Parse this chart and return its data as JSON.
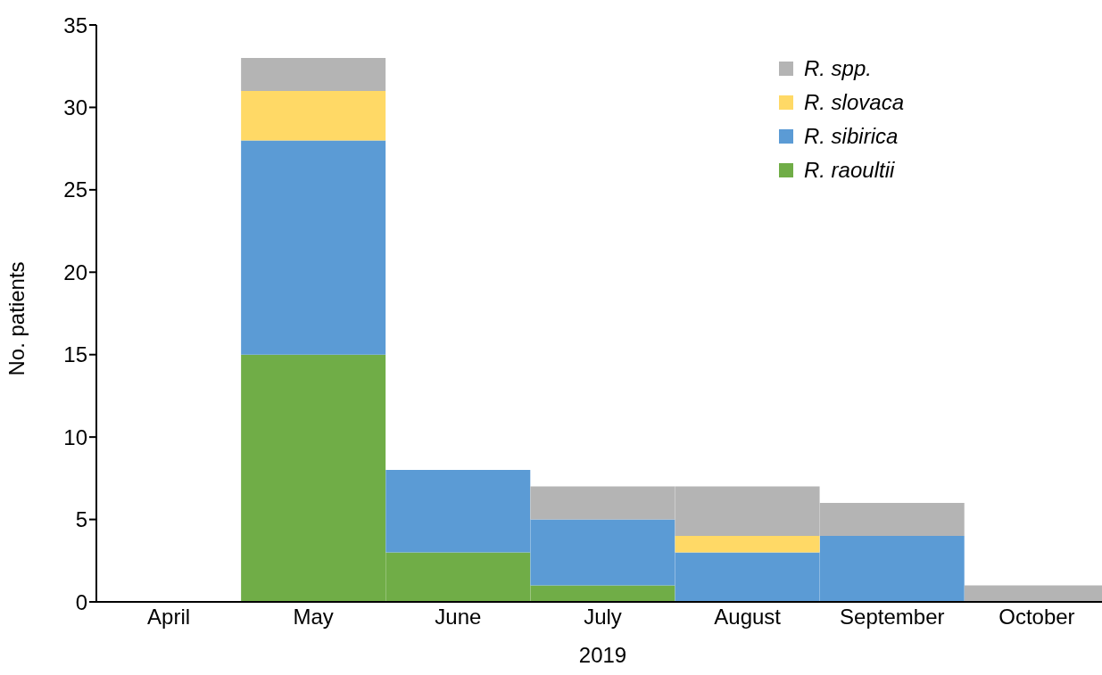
{
  "chart_data": {
    "type": "bar",
    "stacked": true,
    "xlabel": "2019",
    "ylabel": "No. patients",
    "categories": [
      "April",
      "May",
      "June",
      "July",
      "August",
      "September",
      "October"
    ],
    "series": [
      {
        "name": "R. raoultii",
        "color": "#70ad47",
        "values": [
          0,
          15,
          3,
          1,
          0,
          0,
          0
        ]
      },
      {
        "name": "R. sibirica",
        "color": "#5b9bd5",
        "values": [
          0,
          13,
          5,
          4,
          3,
          4,
          0
        ]
      },
      {
        "name": "R. slovaca",
        "color": "#ffd966",
        "values": [
          0,
          3,
          0,
          0,
          1,
          0,
          0
        ]
      },
      {
        "name": "R. spp.",
        "color": "#b4b4b4",
        "values": [
          0,
          2,
          0,
          2,
          3,
          2,
          1
        ]
      }
    ],
    "ylim": [
      0,
      35
    ],
    "yticks": [
      0,
      5,
      10,
      15,
      20,
      25,
      30,
      35
    ],
    "grid": false,
    "legend": "top right"
  }
}
